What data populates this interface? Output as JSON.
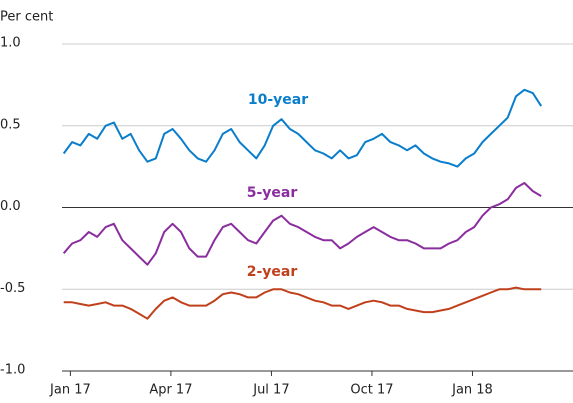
{
  "chart_data": {
    "type": "line",
    "y_axis_label": "Per cent",
    "x": [
      -0.2,
      0.05,
      0.3,
      0.55,
      0.8,
      1.05,
      1.3,
      1.55,
      1.8,
      2.05,
      2.3,
      2.55,
      2.8,
      3.05,
      3.3,
      3.55,
      3.8,
      4.05,
      4.3,
      4.55,
      4.8,
      5.05,
      5.3,
      5.55,
      5.8,
      6.05,
      6.3,
      6.55,
      6.8,
      7.05,
      7.3,
      7.55,
      7.8,
      8.05,
      8.3,
      8.55,
      8.8,
      9.05,
      9.3,
      9.55,
      9.8,
      10.05,
      10.3,
      10.55,
      10.8,
      11.05,
      11.3,
      11.55,
      11.8,
      12.05,
      12.3,
      12.55,
      12.8,
      13.05,
      13.3,
      13.55,
      13.8,
      14.05
    ],
    "series": [
      {
        "name": "10-year",
        "color": "#0a7ecb",
        "values": [
          0.33,
          0.4,
          0.38,
          0.45,
          0.42,
          0.5,
          0.52,
          0.42,
          0.45,
          0.35,
          0.28,
          0.3,
          0.45,
          0.48,
          0.42,
          0.35,
          0.3,
          0.28,
          0.35,
          0.45,
          0.48,
          0.4,
          0.35,
          0.3,
          0.38,
          0.5,
          0.54,
          0.48,
          0.45,
          0.4,
          0.35,
          0.33,
          0.3,
          0.35,
          0.3,
          0.32,
          0.4,
          0.42,
          0.45,
          0.4,
          0.38,
          0.35,
          0.38,
          0.33,
          0.3,
          0.28,
          0.27,
          0.25,
          0.3,
          0.33,
          0.4,
          0.45,
          0.5,
          0.55,
          0.68,
          0.72,
          0.7,
          0.62
        ]
      },
      {
        "name": "5-year",
        "color": "#8a2e9f",
        "values": [
          -0.28,
          -0.22,
          -0.2,
          -0.15,
          -0.18,
          -0.12,
          -0.1,
          -0.2,
          -0.25,
          -0.3,
          -0.35,
          -0.28,
          -0.15,
          -0.1,
          -0.15,
          -0.25,
          -0.3,
          -0.3,
          -0.2,
          -0.12,
          -0.1,
          -0.15,
          -0.2,
          -0.22,
          -0.15,
          -0.08,
          -0.05,
          -0.1,
          -0.12,
          -0.15,
          -0.18,
          -0.2,
          -0.2,
          -0.25,
          -0.22,
          -0.18,
          -0.15,
          -0.12,
          -0.15,
          -0.18,
          -0.2,
          -0.2,
          -0.22,
          -0.25,
          -0.25,
          -0.25,
          -0.22,
          -0.2,
          -0.15,
          -0.12,
          -0.05,
          0.0,
          0.02,
          0.05,
          0.12,
          0.15,
          0.1,
          0.07
        ]
      },
      {
        "name": "2-year",
        "color": "#c0401c",
        "values": [
          -0.58,
          -0.58,
          -0.59,
          -0.6,
          -0.59,
          -0.58,
          -0.6,
          -0.6,
          -0.62,
          -0.65,
          -0.68,
          -0.62,
          -0.57,
          -0.55,
          -0.58,
          -0.6,
          -0.6,
          -0.6,
          -0.57,
          -0.53,
          -0.52,
          -0.53,
          -0.55,
          -0.55,
          -0.52,
          -0.5,
          -0.5,
          -0.52,
          -0.53,
          -0.55,
          -0.57,
          -0.58,
          -0.6,
          -0.6,
          -0.62,
          -0.6,
          -0.58,
          -0.57,
          -0.58,
          -0.6,
          -0.6,
          -0.62,
          -0.63,
          -0.64,
          -0.64,
          -0.63,
          -0.62,
          -0.6,
          -0.58,
          -0.56,
          -0.54,
          -0.52,
          -0.5,
          -0.5,
          -0.49,
          -0.5,
          -0.5,
          -0.5
        ]
      }
    ],
    "xlim": [
      -0.25,
      15
    ],
    "xticks": [
      {
        "value": 0,
        "label": "Jan 17"
      },
      {
        "value": 3,
        "label": "Apr 17"
      },
      {
        "value": 6,
        "label": "Jul 17"
      },
      {
        "value": 9,
        "label": "Oct 17"
      },
      {
        "value": 12,
        "label": "Jan 18"
      }
    ],
    "ylim": [
      -1,
      1
    ],
    "yticks": [
      {
        "value": 1,
        "label": "1.0"
      },
      0.5,
      {
        "value": 0,
        "label": "0.0"
      },
      -0.5,
      {
        "value": -1,
        "label": "-1.0"
      }
    ],
    "grid": true
  }
}
